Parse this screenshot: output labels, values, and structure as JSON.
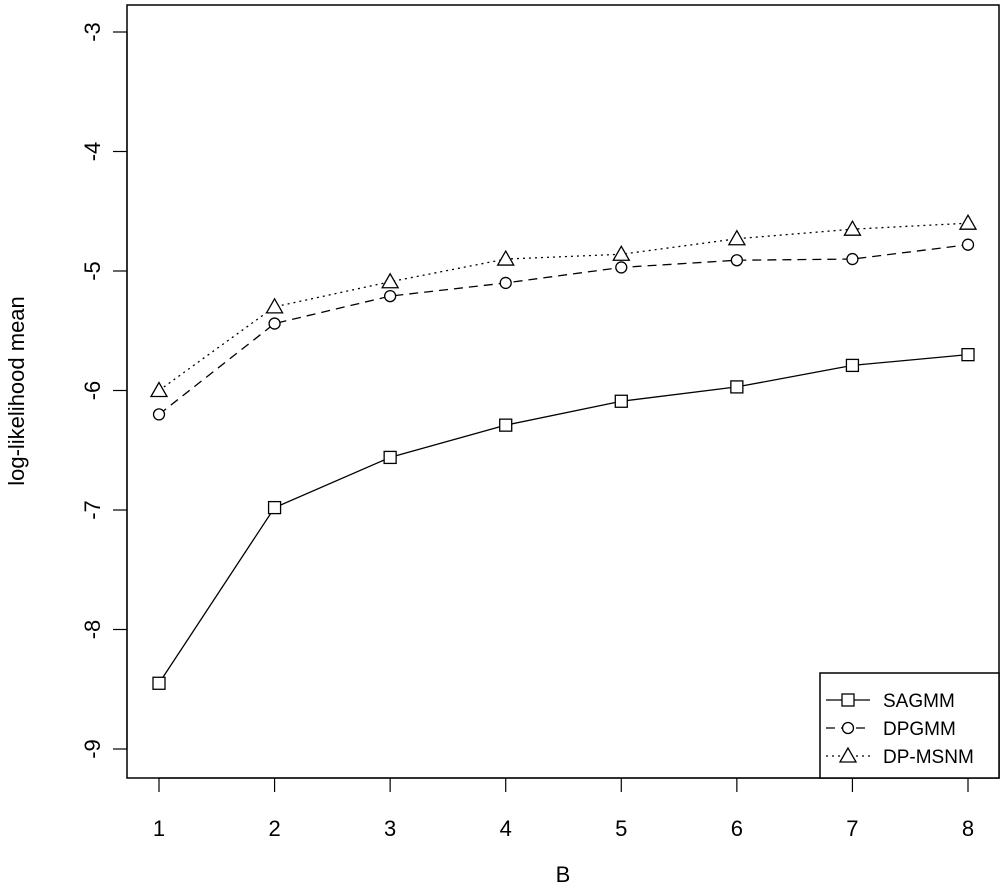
{
  "chart_data": {
    "type": "line",
    "title": "",
    "xlabel": "B",
    "ylabel": "log-likelihood mean",
    "x": [
      1,
      2,
      3,
      4,
      5,
      6,
      7,
      8
    ],
    "xlim": [
      1,
      8
    ],
    "ylim": [
      -9,
      -3
    ],
    "x_ticks": [
      "1",
      "2",
      "3",
      "4",
      "5",
      "6",
      "7",
      "8"
    ],
    "y_ticks": [
      "-9",
      "-8",
      "-7",
      "-6",
      "-5",
      "-4",
      "-3"
    ],
    "grid": false,
    "legend_position": "bottom-right",
    "series": [
      {
        "name": "SAGMM",
        "marker": "square",
        "line_style": "solid",
        "values": [
          -8.45,
          -6.98,
          -6.56,
          -6.29,
          -6.09,
          -5.97,
          -5.79,
          -5.7
        ]
      },
      {
        "name": "DPGMM",
        "marker": "circle",
        "line_style": "dashed",
        "values": [
          -6.2,
          -5.44,
          -5.21,
          -5.1,
          -4.97,
          -4.91,
          -4.9,
          -4.78
        ]
      },
      {
        "name": "DP-MSNM",
        "marker": "triangle",
        "line_style": "dotted",
        "values": [
          -6.0,
          -5.3,
          -5.09,
          -4.9,
          -4.86,
          -4.73,
          -4.65,
          -4.6
        ]
      }
    ]
  }
}
